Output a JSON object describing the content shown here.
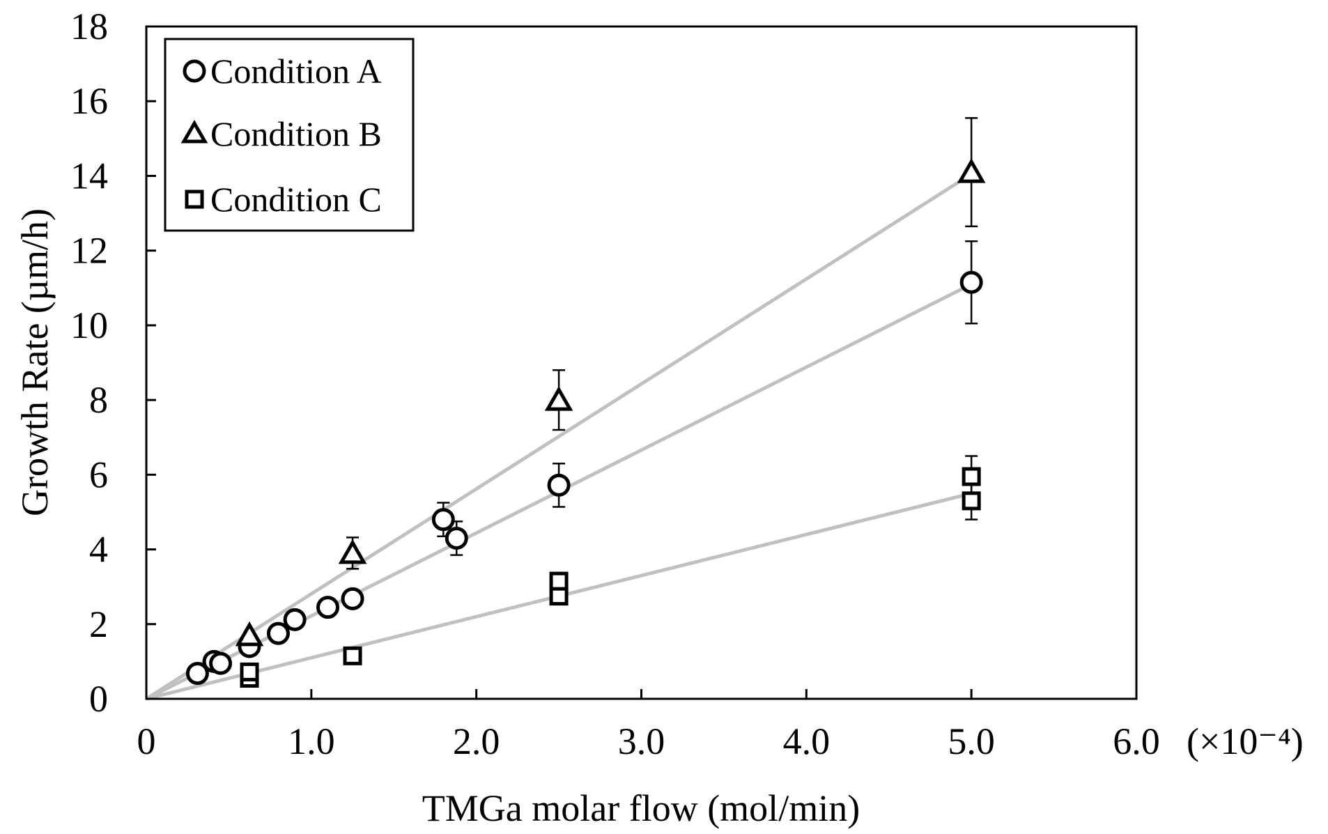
{
  "chart_data": {
    "type": "scatter",
    "title": "",
    "xlabel": "TMGa molar flow (mol/min)",
    "ylabel": "Growth Rate  (µm/h)",
    "x_multiplier_label": "(×10⁻⁴)",
    "xlim": [
      0,
      6.0
    ],
    "ylim": [
      0,
      18
    ],
    "x_ticks": [
      0,
      1.0,
      2.0,
      3.0,
      4.0,
      5.0,
      6.0
    ],
    "x_tick_labels": [
      "0",
      "1.0",
      "2.0",
      "3.0",
      "4.0",
      "5.0",
      "6.0"
    ],
    "y_ticks": [
      0,
      2,
      4,
      6,
      8,
      10,
      12,
      14,
      16,
      18
    ],
    "y_tick_labels": [
      "0",
      "2",
      "4",
      "6",
      "8",
      "10",
      "12",
      "14",
      "16",
      "18"
    ],
    "grid": false,
    "legend_position": "top-left",
    "series": [
      {
        "name": "Condition A",
        "marker": "circle",
        "points": [
          {
            "x": 0.31,
            "y": 0.68
          },
          {
            "x": 0.41,
            "y": 1.0
          },
          {
            "x": 0.45,
            "y": 0.95
          },
          {
            "x": 0.625,
            "y": 1.4
          },
          {
            "x": 0.8,
            "y": 1.75
          },
          {
            "x": 0.9,
            "y": 2.12
          },
          {
            "x": 1.1,
            "y": 2.45
          },
          {
            "x": 1.25,
            "y": 2.68
          },
          {
            "x": 1.8,
            "y": 4.8,
            "err": 0.45
          },
          {
            "x": 1.88,
            "y": 4.3,
            "err": 0.45
          },
          {
            "x": 2.5,
            "y": 5.72,
            "err": 0.58
          },
          {
            "x": 5.0,
            "y": 11.15,
            "err": 1.1
          }
        ],
        "fit_line": {
          "x0": 0,
          "y0": 0,
          "x1": 5.0,
          "y1": 11.1
        }
      },
      {
        "name": "Condition B",
        "marker": "triangle",
        "points": [
          {
            "x": 0.625,
            "y": 1.7
          },
          {
            "x": 1.25,
            "y": 3.9,
            "err": 0.42
          },
          {
            "x": 2.5,
            "y": 8.0,
            "err": 0.8
          },
          {
            "x": 5.0,
            "y": 14.1,
            "err": 1.45
          }
        ],
        "fit_line": {
          "x0": 0,
          "y0": 0,
          "x1": 5.0,
          "y1": 14.05
        }
      },
      {
        "name": "Condition C",
        "marker": "square",
        "points": [
          {
            "x": 0.625,
            "y": 0.55
          },
          {
            "x": 0.625,
            "y": 0.72
          },
          {
            "x": 1.25,
            "y": 1.15
          },
          {
            "x": 2.5,
            "y": 2.75
          },
          {
            "x": 2.5,
            "y": 3.15
          },
          {
            "x": 5.0,
            "y": 5.3,
            "err": 0.5
          },
          {
            "x": 5.0,
            "y": 5.95,
            "err": 0.55
          }
        ],
        "fit_line": {
          "x0": 0,
          "y0": 0,
          "x1": 5.0,
          "y1": 5.5
        }
      }
    ],
    "colors": {
      "axis": "#000000",
      "marker": "#000000",
      "fit_line": "#c0c0c0",
      "background": "#ffffff"
    }
  }
}
